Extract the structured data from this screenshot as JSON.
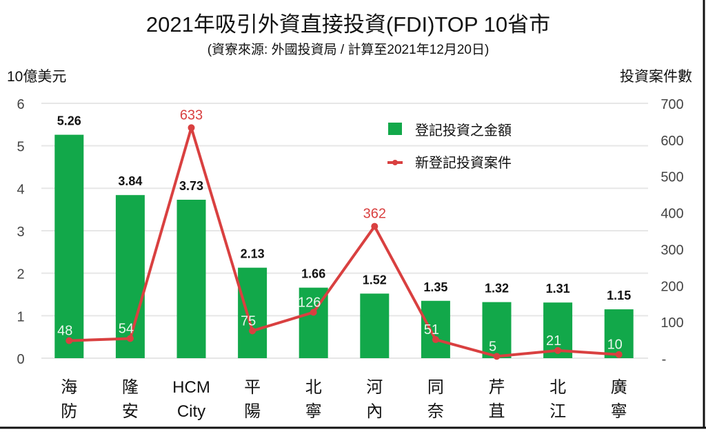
{
  "chart_data": {
    "type": "bar+line",
    "title": "2021年吸引外資直接投資(FDI)TOP 10省市",
    "subtitle": "(資寮來源: 外國投資局 / 計算至2021年12月20日)",
    "ylabel_left": "10億美元",
    "ylabel_right": "投資案件數",
    "ylim_left": [
      0,
      6
    ],
    "ylim_right": [
      0,
      700
    ],
    "yticks_left": [
      "0",
      "1",
      "2",
      "3",
      "4",
      "5",
      "6"
    ],
    "yticks_right": [
      "-",
      "100",
      "200",
      "300",
      "400",
      "500",
      "600",
      "700"
    ],
    "grid": true,
    "legend_position": "top-right",
    "categories": [
      [
        "海",
        "防"
      ],
      [
        "隆",
        "安"
      ],
      [
        "HCM",
        "City"
      ],
      [
        "平",
        "陽"
      ],
      [
        "北",
        "寧"
      ],
      [
        "河",
        "內"
      ],
      [
        "同",
        "奈"
      ],
      [
        "芹",
        "苴"
      ],
      [
        "北",
        "江"
      ],
      [
        "廣",
        "寧"
      ]
    ],
    "series": [
      {
        "name": "登記投資之金額",
        "type": "bar",
        "axis": "left",
        "color": "#12a84a",
        "values": [
          5.26,
          3.84,
          3.73,
          2.13,
          1.66,
          1.52,
          1.35,
          1.32,
          1.31,
          1.15
        ],
        "labels": [
          "5.26",
          "3.84",
          "3.73",
          "2.13",
          "1.66",
          "1.52",
          "1.35",
          "1.32",
          "1.31",
          "1.15"
        ]
      },
      {
        "name": "新登記投資案件",
        "type": "line",
        "axis": "right",
        "color": "#d94040",
        "values": [
          48,
          54,
          633,
          75,
          126,
          362,
          51,
          5,
          21,
          10
        ],
        "labels": [
          "48",
          "54",
          "633",
          "75",
          "126",
          "362",
          "51",
          "5",
          "21",
          "10"
        ]
      }
    ]
  }
}
